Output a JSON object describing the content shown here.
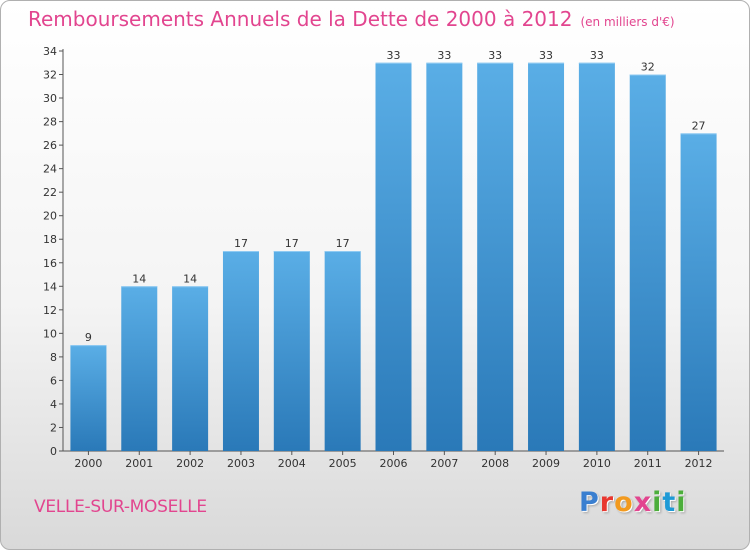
{
  "chart_data": {
    "type": "bar",
    "title": "Remboursements Annuels de la Dette de 2000 à 2012",
    "subtitle": "(en milliers d'€)",
    "xlabel": "",
    "ylabel": "",
    "categories": [
      "2000",
      "2001",
      "2002",
      "2003",
      "2004",
      "2005",
      "2006",
      "2007",
      "2008",
      "2009",
      "2010",
      "2011",
      "2012"
    ],
    "values": [
      9,
      14,
      14,
      17,
      17,
      17,
      33,
      33,
      33,
      33,
      33,
      32,
      27
    ],
    "ylim": [
      0,
      34
    ],
    "yticks": [
      0,
      2,
      4,
      6,
      8,
      10,
      12,
      14,
      16,
      18,
      20,
      22,
      24,
      26,
      28,
      30,
      32,
      34
    ],
    "grid": false,
    "bar_color_top": "#5aaee6",
    "bar_color_bottom": "#2a79b8"
  },
  "footer": {
    "commune": "VELLE-SUR-MOSELLE",
    "logo_parts": [
      "P",
      "r",
      "o",
      "x",
      "i",
      "t",
      "i"
    ]
  }
}
